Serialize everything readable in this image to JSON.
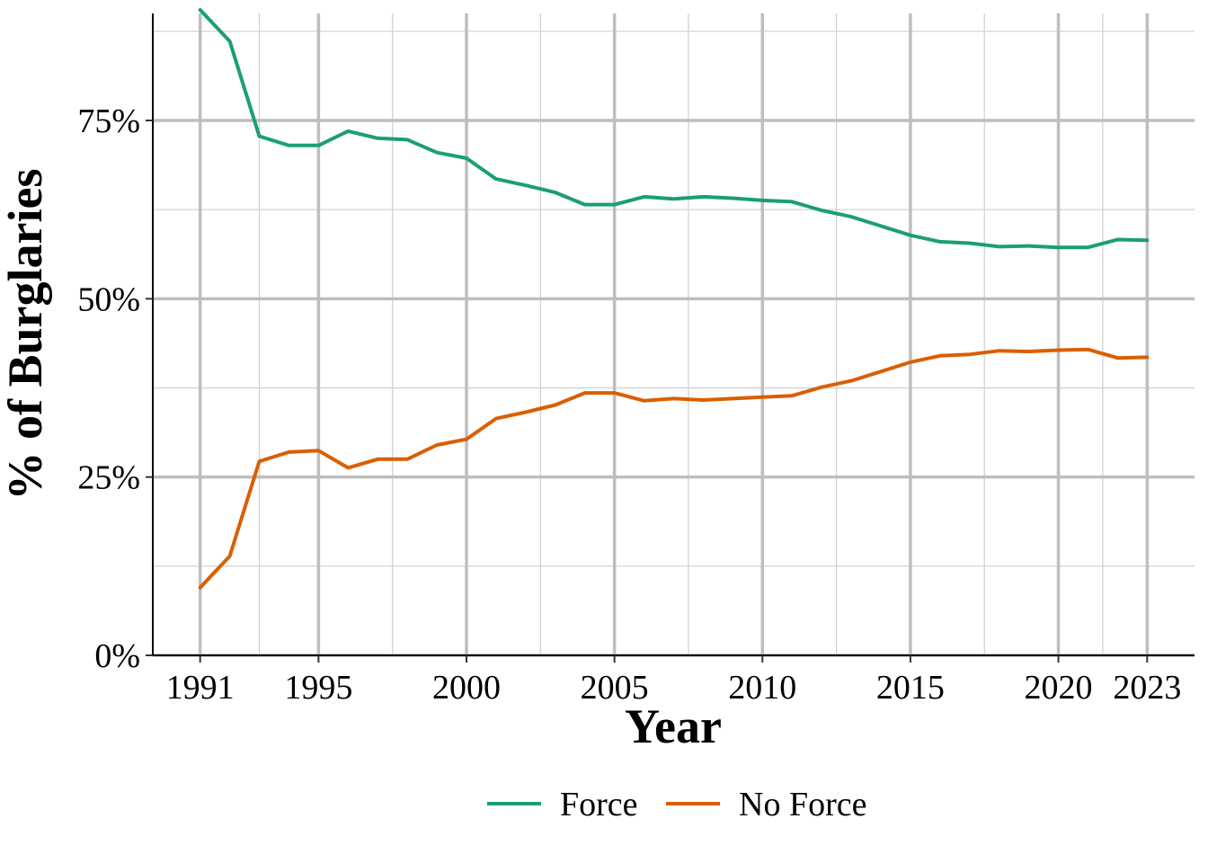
{
  "chart_data": {
    "type": "line",
    "title": "",
    "xlabel": "Year",
    "ylabel": "% of Burglaries",
    "x": [
      1991,
      1992,
      1993,
      1994,
      1995,
      1996,
      1997,
      1998,
      1999,
      2000,
      2001,
      2002,
      2003,
      2004,
      2005,
      2006,
      2007,
      2008,
      2009,
      2010,
      2011,
      2012,
      2013,
      2014,
      2015,
      2016,
      2017,
      2018,
      2019,
      2020,
      2021,
      2022,
      2023
    ],
    "xticks": [
      1991,
      1995,
      2000,
      2005,
      2010,
      2015,
      2020,
      2023
    ],
    "xtick_labels": [
      "1991",
      "1995",
      "2000",
      "2005",
      "2010",
      "2015",
      "2020",
      "2023"
    ],
    "xlim": [
      1989.4,
      2024.6
    ],
    "ylim": [
      0,
      0.9
    ],
    "yticks": [
      0,
      0.25,
      0.5,
      0.75
    ],
    "ytick_labels": [
      "0%",
      "25%",
      "50%",
      "75%"
    ],
    "grid": true,
    "legend_position": "bottom",
    "series": [
      {
        "name": "Force",
        "color": "#1b9e77",
        "values": [
          0.905,
          0.861,
          0.728,
          0.715,
          0.715,
          0.735,
          0.725,
          0.723,
          0.705,
          0.697,
          0.668,
          0.659,
          0.649,
          0.632,
          0.632,
          0.643,
          0.64,
          0.643,
          0.641,
          0.638,
          0.636,
          0.624,
          0.615,
          0.602,
          0.589,
          0.58,
          0.578,
          0.573,
          0.574,
          0.572,
          0.572,
          0.583,
          0.582
        ]
      },
      {
        "name": "No Force",
        "color": "#d95f02",
        "values": [
          0.095,
          0.139,
          0.272,
          0.285,
          0.287,
          0.263,
          0.275,
          0.275,
          0.295,
          0.303,
          0.332,
          0.341,
          0.351,
          0.368,
          0.368,
          0.357,
          0.36,
          0.358,
          0.36,
          0.362,
          0.364,
          0.376,
          0.385,
          0.398,
          0.411,
          0.42,
          0.422,
          0.427,
          0.426,
          0.428,
          0.429,
          0.417,
          0.418
        ]
      }
    ]
  }
}
